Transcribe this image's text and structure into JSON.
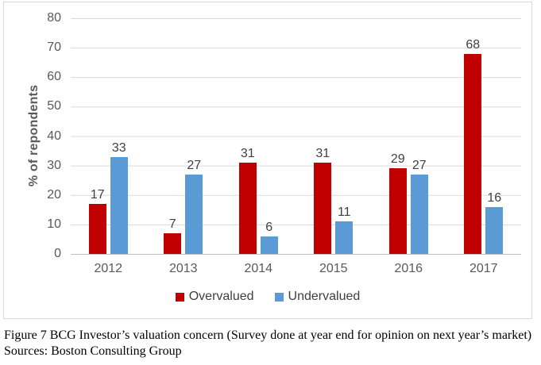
{
  "chart_data": {
    "type": "bar",
    "title": "",
    "categories": [
      "2012",
      "2013",
      "2014",
      "2015",
      "2016",
      "2017"
    ],
    "series": [
      {
        "name": "Overvalued",
        "color": "#c00000",
        "values": [
          17,
          7,
          31,
          31,
          29,
          68
        ]
      },
      {
        "name": "Undervalued",
        "color": "#5b9bd5",
        "values": [
          33,
          27,
          6,
          11,
          27,
          16
        ]
      }
    ],
    "xlabel": "",
    "ylabel": "% of repondents",
    "ylim": [
      0,
      80
    ],
    "ytick_step": 10,
    "yticks": [
      "80",
      "70",
      "60",
      "50",
      "40",
      "30",
      "20",
      "10",
      "0"
    ],
    "grid": "horizontal",
    "legend_position": "bottom",
    "data_labels": true
  },
  "legend": {
    "items": [
      {
        "label": "Overvalued",
        "color": "#c00000"
      },
      {
        "label": "Undervalued",
        "color": "#5b9bd5"
      }
    ]
  },
  "caption": {
    "line1": "Figure 7 BCG Investor’s valuation concern (Survey done at year end for opinion on next year’s market)",
    "line2": "Sources: Boston Consulting Group"
  },
  "colors": {
    "overvalued": "#c00000",
    "undervalued": "#5b9bd5",
    "gridline": "#d9d9d9",
    "axis_line": "#bfbfbf",
    "tick_text": "#595959",
    "label_text": "#404040"
  }
}
